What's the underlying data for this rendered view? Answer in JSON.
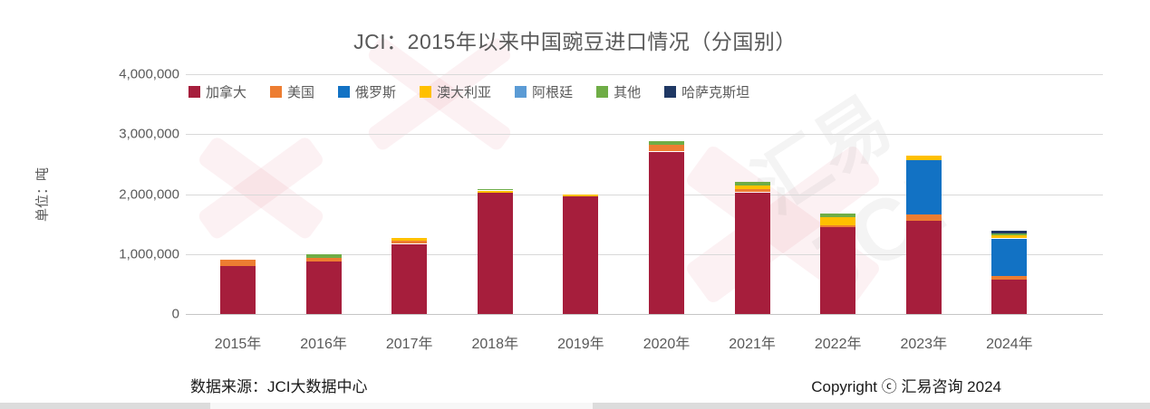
{
  "page": {
    "source_note": "数据来源：JCI大数据中心",
    "copyright": "Copyright ⓒ 汇易咨询 2024",
    "watermark_cn": "汇易",
    "watermark_en": "JCI"
  },
  "chart_data": {
    "type": "bar",
    "stacked": true,
    "title": "JCI：2015年以来中国豌豆进口情况（分国别）",
    "ylabel": "单位：吨",
    "xlabel": "",
    "grid": true,
    "legend_position": "top-left-inside",
    "ylim": [
      0,
      4000000
    ],
    "y_ticks": [
      "4,000,000",
      "3,000,000",
      "2,000,000",
      "1,000,000",
      "0"
    ],
    "tick_values": [
      4000000,
      3000000,
      2000000,
      1000000,
      0
    ],
    "categories": [
      "2015年",
      "2016年",
      "2017年",
      "2018年",
      "2019年",
      "2020年",
      "2021年",
      "2022年",
      "2023年",
      "2024年"
    ],
    "series": [
      {
        "id": "canada",
        "name": "加拿大",
        "color": "#A61E3C",
        "values": [
          800000,
          880000,
          1170000,
          2030000,
          1960000,
          2710000,
          2030000,
          1450000,
          1560000,
          575000
        ]
      },
      {
        "id": "usa",
        "name": "美国",
        "color": "#ED7D31",
        "values": [
          100000,
          60000,
          55000,
          0,
          0,
          110000,
          50000,
          35000,
          100000,
          60000
        ]
      },
      {
        "id": "russia",
        "name": "俄罗斯",
        "color": "#1272C4",
        "values": [
          0,
          0,
          0,
          0,
          0,
          0,
          0,
          0,
          900000,
          625000
        ]
      },
      {
        "id": "australia",
        "name": "澳大利亚",
        "color": "#FFC000",
        "values": [
          0,
          0,
          40000,
          30000,
          40000,
          0,
          65000,
          130000,
          75000,
          50000
        ]
      },
      {
        "id": "argentina",
        "name": "阿根廷",
        "color": "#5B9BD5",
        "values": [
          0,
          0,
          0,
          0,
          0,
          0,
          0,
          0,
          0,
          0
        ]
      },
      {
        "id": "other",
        "name": "其他",
        "color": "#6FAD46",
        "values": [
          0,
          60000,
          0,
          20000,
          0,
          70000,
          60000,
          60000,
          0,
          30000
        ]
      },
      {
        "id": "kazakhstan",
        "name": "哈萨克斯坦",
        "color": "#1F3864",
        "values": [
          0,
          0,
          0,
          0,
          0,
          0,
          0,
          0,
          0,
          45000
        ]
      }
    ]
  }
}
